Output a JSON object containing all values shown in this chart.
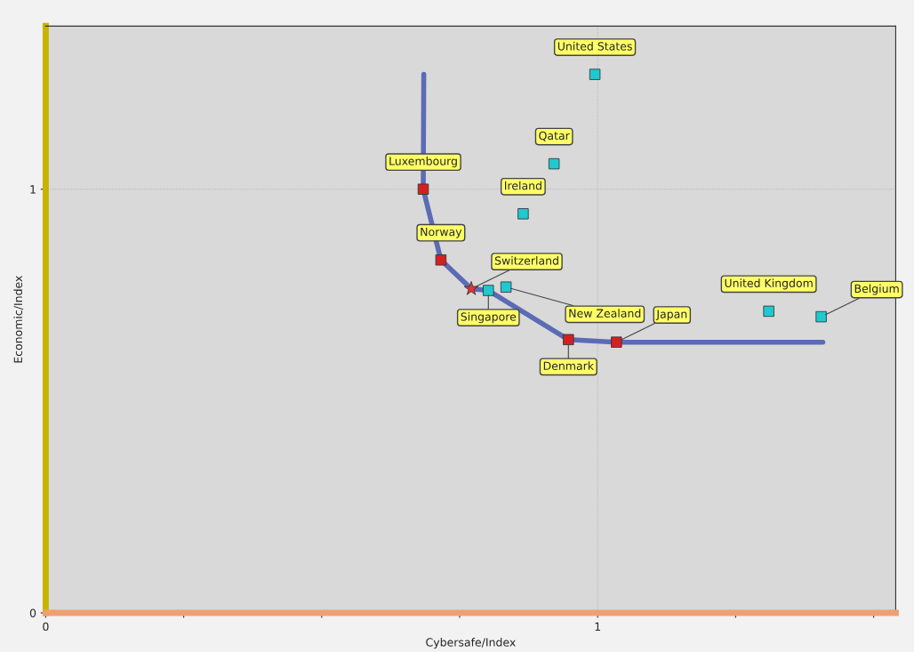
{
  "chart_data": {
    "type": "scatter",
    "xlabel": "Cybersafe/Index",
    "ylabel": "Economic/Index",
    "xlim": [
      0,
      1.54
    ],
    "ylim": [
      0,
      1.385
    ],
    "xticks": [
      0,
      {
        "value": 0.25,
        "label": null
      },
      {
        "value": 0.5,
        "label": null
      },
      {
        "value": 0.75,
        "label": null
      },
      1,
      {
        "value": 1.25,
        "label": null
      },
      {
        "value": 1.5,
        "label": null
      }
    ],
    "yticks": [
      0,
      1
    ],
    "grid": true,
    "legend": false,
    "series": [
      {
        "type": "line",
        "color": "#5b6bb5",
        "marker": "none",
        "line_style": "solid",
        "x": [
          0.685,
          0.684,
          0.716,
          0.771,
          0.802,
          0.947,
          1.034,
          1.408
        ],
        "values": [
          1.271,
          1.0,
          0.833,
          0.765,
          0.761,
          0.645,
          0.639,
          0.639
        ]
      },
      {
        "color": "#d42020",
        "marker": "square",
        "x": [
          0.684,
          0.716,
          0.947,
          1.034
        ],
        "values": [
          1.0,
          0.833,
          0.645,
          0.639
        ]
      },
      {
        "color": "#e83030",
        "marker": "star",
        "x": [
          0.771
        ],
        "values": [
          0.765
        ]
      },
      {
        "color": "#20c8d0",
        "marker": "square",
        "x": [
          0.802,
          0.834,
          0.865,
          0.921,
          0.995,
          1.31,
          1.405
        ],
        "values": [
          0.761,
          0.769,
          0.942,
          1.06,
          1.271,
          0.712,
          0.699
        ]
      }
    ],
    "annotations": [
      {
        "text": "Luxembourg",
        "x": 0.684,
        "y": 1.0
      },
      {
        "text": "Norway",
        "x": 0.716,
        "y": 0.833
      },
      {
        "text": "Switzerland",
        "x": 0.771,
        "y": 0.765
      },
      {
        "text": "Singapore",
        "x": 0.802,
        "y": 0.761
      },
      {
        "text": "New Zealand",
        "x": 0.834,
        "y": 0.769
      },
      {
        "text": "Denmark",
        "x": 0.947,
        "y": 0.645
      },
      {
        "text": "Japan",
        "x": 1.034,
        "y": 0.639
      },
      {
        "text": "Ireland",
        "x": 0.865,
        "y": 0.942
      },
      {
        "text": "Qatar",
        "x": 0.921,
        "y": 1.06
      },
      {
        "text": "United States",
        "x": 0.995,
        "y": 1.271
      },
      {
        "text": "United Kingdom",
        "x": 1.31,
        "y": 0.712
      },
      {
        "text": "Belgium",
        "x": 1.405,
        "y": 0.699
      }
    ]
  }
}
